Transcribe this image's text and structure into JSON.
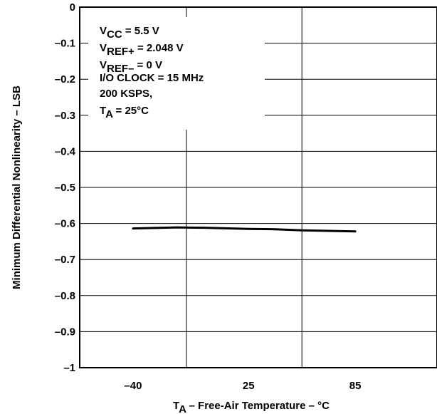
{
  "chart_data": {
    "type": "line",
    "title": "",
    "xlabel": {
      "main": "T",
      "sub": "A",
      "rest": " – Free-Air Temperature – °C"
    },
    "ylabel": "Minimum Differential Nonlinearity – LSB",
    "x_ticks": [
      -40,
      25,
      85
    ],
    "x_tick_labels": [
      "–40",
      "25",
      "85"
    ],
    "xlim": [
      -70,
      131
    ],
    "ylim": [
      -1,
      0
    ],
    "y_ticks": [
      0,
      -0.1,
      -0.2,
      -0.3,
      -0.4,
      -0.5,
      -0.6,
      -0.7,
      -0.8,
      -0.9,
      -1
    ],
    "y_tick_labels": [
      "0",
      "–0.1",
      "–0.2",
      "–0.3",
      "–0.4",
      "–0.5",
      "–0.6",
      "–0.7",
      "–0.8",
      "–0.9",
      "–1"
    ],
    "grid": true,
    "series": [
      {
        "color": "#000000",
        "x": [
          -40,
          -15,
          0,
          25,
          40,
          55,
          85
        ],
        "y": [
          -0.614,
          -0.611,
          -0.612,
          -0.615,
          -0.616,
          -0.619,
          -0.622
        ]
      }
    ],
    "annotations": [
      {
        "main": "V",
        "sub": "CC",
        "rest": " = 5.5 V"
      },
      {
        "main": "V",
        "sub": "REF+",
        "rest": " = 2.048 V"
      },
      {
        "main": "V",
        "sub": "REF–",
        "rest": " = 0 V"
      },
      {
        "main": "I/O CLOCK = 15 MHz",
        "sub": "",
        "rest": ""
      },
      {
        "main": "200 KSPS,",
        "sub": "",
        "rest": ""
      },
      {
        "main": "T",
        "sub": "A",
        "rest": " = 25°C"
      }
    ]
  }
}
